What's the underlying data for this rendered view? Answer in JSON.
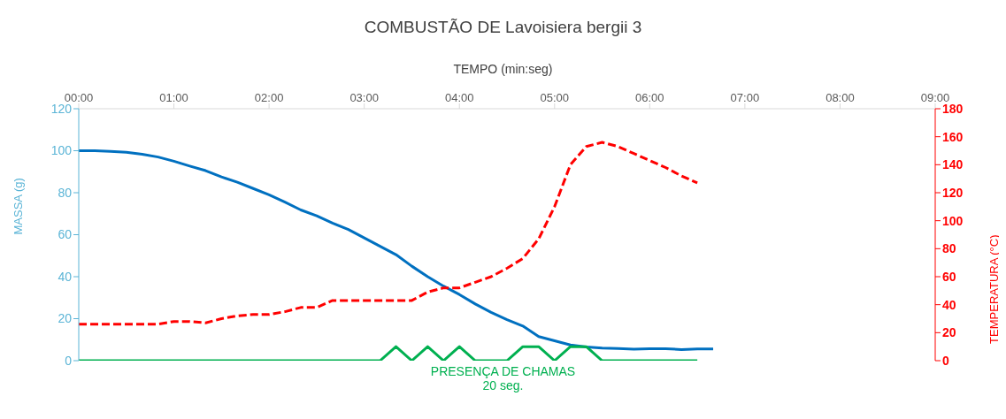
{
  "chart_data": {
    "type": "line",
    "title": "COMBUSTÃO DE Lavoisiera bergii 3",
    "xlabel": "TEMPO (min:seg)",
    "ylabel": "MASSA (g)",
    "y2label": "TEMPERATURA (°C)",
    "x": [
      0,
      10,
      20,
      30,
      40,
      50,
      60,
      70,
      80,
      90,
      100,
      110,
      120,
      130,
      140,
      150,
      160,
      170,
      180,
      190,
      200,
      210,
      220,
      230,
      240,
      250,
      260,
      270,
      280,
      290,
      300,
      310,
      320,
      330,
      340,
      350,
      360,
      370,
      380,
      390,
      400
    ],
    "series": [
      {
        "color": "#0070c0",
        "line_style": "solid",
        "values": [
          100,
          100,
          99.7,
          99.3,
          98.3,
          97,
          95,
          92.7,
          90.5,
          87.5,
          85,
          82,
          79,
          75.5,
          71.8,
          69,
          65.5,
          62.5,
          58.5,
          54.5,
          50.5,
          45,
          40,
          35.5,
          31.5,
          27,
          23,
          19.5,
          16.5,
          11.5,
          9.5,
          7.5,
          6.5,
          6,
          5.8,
          5.5,
          5.7,
          5.7,
          5.3,
          5.6,
          5.6
        ]
      },
      {
        "color": "#ff0000",
        "axis": "y2",
        "line_style": "dashed",
        "values": [
          26,
          26,
          26,
          26,
          26,
          26,
          28,
          28,
          27,
          30,
          32,
          33,
          33,
          35,
          38,
          38,
          43,
          43,
          43,
          43,
          43,
          43,
          49,
          52,
          52,
          56,
          60,
          66,
          73,
          87,
          110,
          140,
          153,
          156,
          153,
          148,
          143,
          138,
          132,
          127,
          null
        ]
      },
      {
        "name": "PRESENÇA DE CHAMAS",
        "color": "#00b050",
        "axis": "y2",
        "line_style": "solid",
        "values": [
          0,
          0,
          0,
          0,
          0,
          0,
          0,
          0,
          0,
          0,
          0,
          0,
          0,
          0,
          0,
          0,
          0,
          0,
          0,
          0,
          10,
          0,
          10,
          0,
          10,
          0,
          0,
          0,
          10,
          10,
          0,
          10,
          10,
          0,
          0,
          0,
          0,
          0,
          0,
          0,
          null
        ]
      }
    ],
    "annotations": [
      "20 seg."
    ],
    "xlim": [
      0,
      540
    ],
    "xticks": [
      {
        "value": 0,
        "label": "00:00"
      },
      {
        "value": 60,
        "label": "01:00"
      },
      {
        "value": 120,
        "label": "02:00"
      },
      {
        "value": 180,
        "label": "03:00"
      },
      {
        "value": 240,
        "label": "04:00"
      },
      {
        "value": 300,
        "label": "05:00"
      },
      {
        "value": 360,
        "label": "06:00"
      },
      {
        "value": 420,
        "label": "07:00"
      },
      {
        "value": 480,
        "label": "08:00"
      },
      {
        "value": 540,
        "label": "09:00"
      }
    ],
    "ylim": [
      0,
      120
    ],
    "yticks": [
      0,
      20,
      40,
      60,
      80,
      100,
      120
    ],
    "y2lim": [
      0,
      180
    ],
    "y2ticks": [
      0,
      20,
      40,
      60,
      80,
      100,
      120,
      140,
      160,
      180
    ],
    "grid": false,
    "legend": "bottom",
    "marker": "none"
  }
}
